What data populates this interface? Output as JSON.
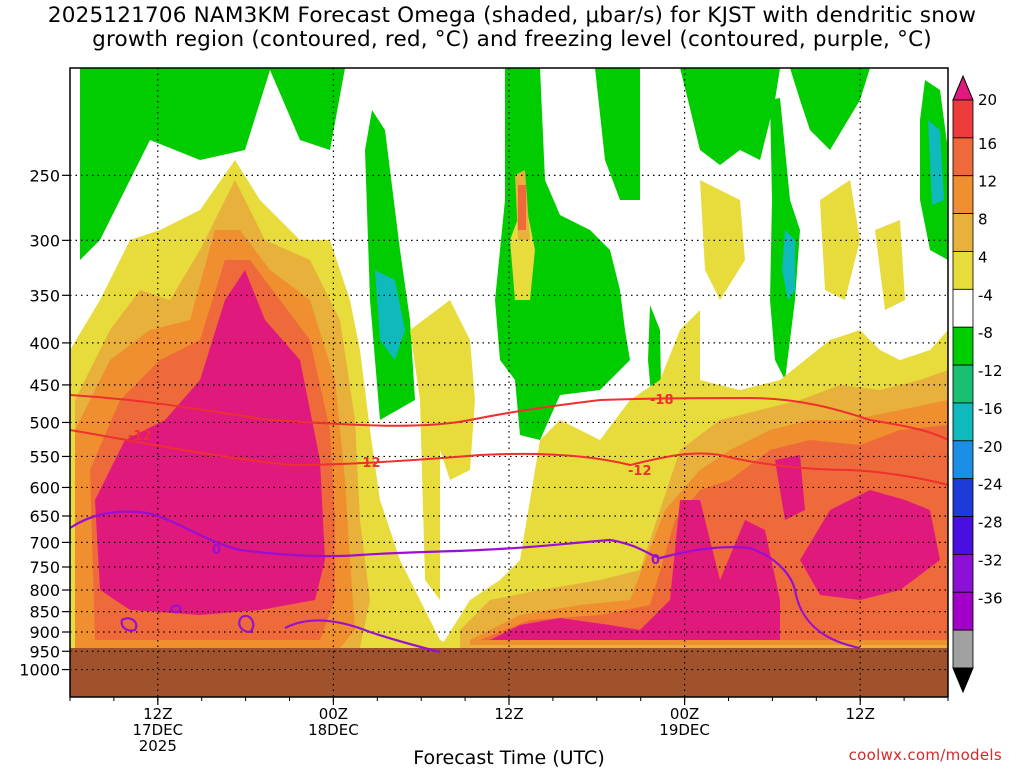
{
  "title": {
    "line1": "2025121706 NAM3KM Forecast Omega (shaded, μbar/s) for KJST with dendritic snow",
    "line2": "growth region (contoured, red, °C) and freezing level (contoured, purple, °C)"
  },
  "credit": "coolwx.com/models",
  "chart_data": {
    "type": "heatmap",
    "xlabel": "Forecast Time (UTC)",
    "ylabel": "",
    "y_scale": "log-pressure",
    "y_ticks": [
      "250",
      "300",
      "350",
      "400",
      "450",
      "500",
      "550",
      "600",
      "650",
      "700",
      "750",
      "800",
      "850",
      "900",
      "950",
      "1000"
    ],
    "x_ticks": [
      {
        "label": "12Z",
        "sub1": "17DEC",
        "sub2": "2025",
        "hour": 6
      },
      {
        "label": "00Z",
        "sub1": "18DEC",
        "sub2": "",
        "hour": 18
      },
      {
        "label": "12Z",
        "sub1": "",
        "sub2": "",
        "hour": 30
      },
      {
        "label": "00Z",
        "sub1": "19DEC",
        "sub2": "",
        "hour": 42
      },
      {
        "label": "12Z",
        "sub1": "",
        "sub2": "",
        "hour": 54
      }
    ],
    "grid": true,
    "colorbar": {
      "labels": [
        "20",
        "16",
        "12",
        "8",
        "4",
        "-4",
        "-8",
        "-12",
        "-16",
        "-20",
        "-24",
        "-28",
        "-32",
        "-36"
      ],
      "colors": [
        "#e0197d",
        "#ee3b3b",
        "#ee6a3a",
        "#ef8f30",
        "#e8b13c",
        "#e8dc3c",
        "#ffffff",
        "#00cc00",
        "#1abf73",
        "#10b9bb",
        "#1b8fe6",
        "#1c3bd9",
        "#4a0ee0",
        "#8c10d6",
        "#a000c8",
        "#a0a0a0",
        "#000000"
      ]
    },
    "contours": {
      "dgz": {
        "color": "#ee3030",
        "labels": [
          "-12",
          "-12",
          "-18",
          "-12"
        ]
      },
      "freezing": {
        "color": "#9a10d0",
        "labels": [
          "0",
          "0"
        ]
      }
    }
  }
}
